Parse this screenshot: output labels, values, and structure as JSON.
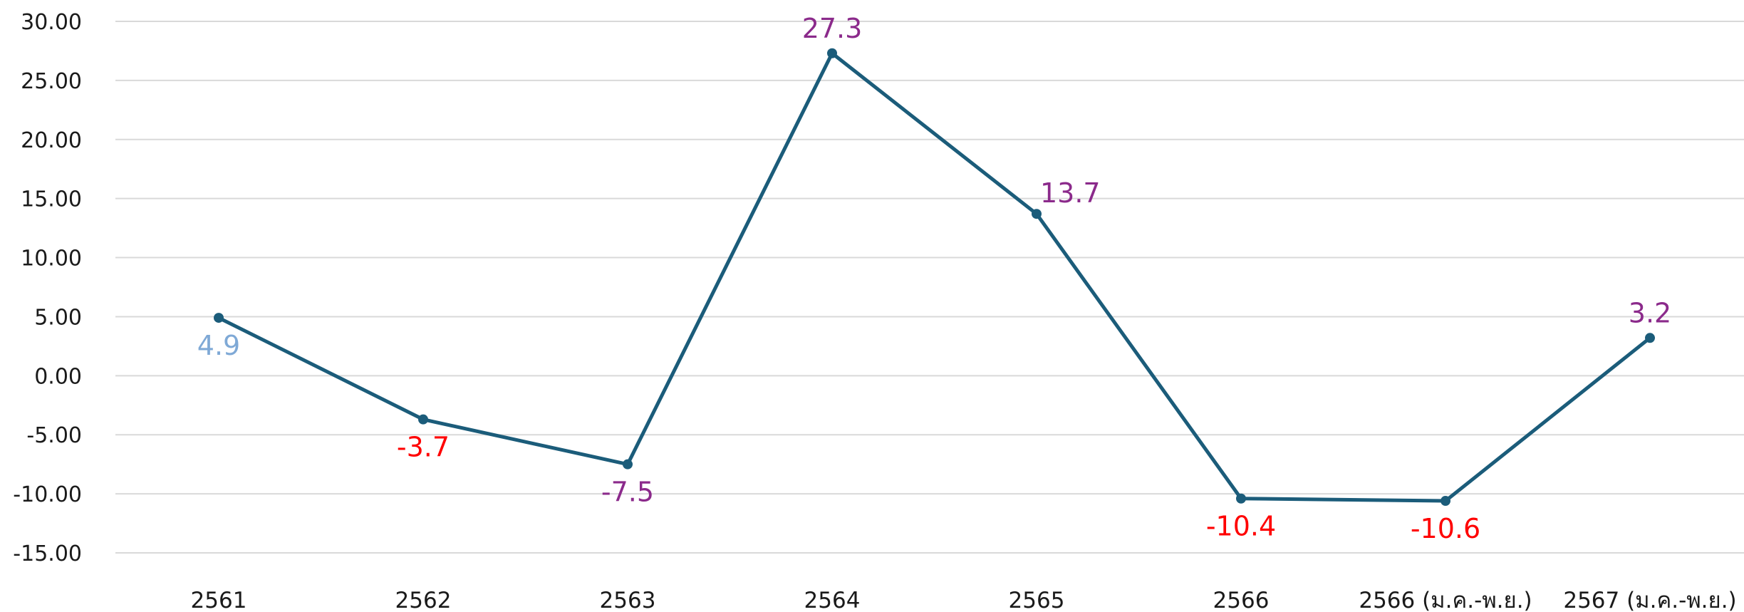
{
  "chart_data": {
    "type": "line",
    "title": "",
    "xlabel": "",
    "ylabel": "",
    "categories": [
      "2561",
      "2562",
      "2563",
      "2564",
      "2565",
      "2566",
      "2566 (ม.ค.-พ.ย.)",
      "2567 (ม.ค.-พ.ย.)"
    ],
    "series": [
      {
        "values": [
          4.9,
          -3.7,
          -7.5,
          27.3,
          13.7,
          -10.4,
          -10.6,
          3.2
        ],
        "labels": [
          "4.9",
          "-3.7",
          "-7.5",
          "27.3",
          "13.7",
          "-10.4",
          "-10.6",
          "3.2"
        ],
        "label_positions": [
          "below",
          "below",
          "below",
          "above",
          "above-right",
          "below",
          "below",
          "above"
        ],
        "label_colors": [
          "#7fa9d6",
          "#ff0000",
          "#8b2a8b",
          "#8b2a8b",
          "#8b2a8b",
          "#ff0000",
          "#ff0000",
          "#8b2a8b"
        ]
      }
    ],
    "ylim": [
      -15,
      30
    ],
    "y_ticks": [
      "30.00",
      "25.00",
      "20.00",
      "15.00",
      "10.00",
      "5.00",
      "0.00",
      "-5.00",
      "-10.00",
      "-15.00"
    ],
    "y_tick_values": [
      30,
      25,
      20,
      15,
      10,
      5,
      0,
      -5,
      -10,
      -15
    ],
    "grid": true,
    "legend": "none",
    "line_color": "#1b5c7a",
    "grid_color": "#d9d9d9"
  }
}
